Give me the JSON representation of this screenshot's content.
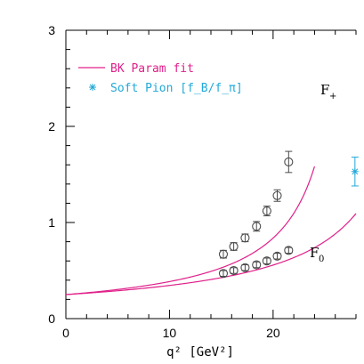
{
  "chart_data": {
    "type": "scatter",
    "title": "",
    "xlabel": "q² [GeV²]",
    "ylabel": "",
    "xlim": [
      0,
      28
    ],
    "ylim": [
      0,
      3
    ],
    "x_ticks": [
      "0",
      "10",
      "20"
    ],
    "y_ticks": [
      "0",
      "1",
      "2",
      "3"
    ],
    "legend": {
      "position": "top-left",
      "entries": [
        {
          "label": "BK Param fit",
          "marker": "line",
          "color": "#e0208a"
        },
        {
          "label": "Soft Pion [f_B/f_π]",
          "marker": "asterisk",
          "color": "#22a9d8"
        }
      ]
    },
    "curve_labels": [
      {
        "text": "F",
        "sub": "+"
      },
      {
        "text": "F",
        "sub": "0"
      }
    ],
    "series": [
      {
        "curve": "F+",
        "x": [
          15.2,
          16.2,
          17.3,
          18.4,
          19.4,
          20.4,
          21.5
        ],
        "y": [
          0.67,
          0.75,
          0.84,
          0.96,
          1.12,
          1.28,
          1.63
        ],
        "yerr": [
          0.04,
          0.04,
          0.04,
          0.05,
          0.05,
          0.06,
          0.11
        ]
      },
      {
        "curve": "F0",
        "x": [
          15.2,
          16.2,
          17.3,
          18.4,
          19.4,
          20.4,
          21.5
        ],
        "y": [
          0.47,
          0.5,
          0.53,
          0.56,
          0.6,
          0.65,
          0.71
        ],
        "yerr": [
          0.03,
          0.03,
          0.03,
          0.03,
          0.03,
          0.03,
          0.03
        ]
      }
    ],
    "fit_curves": [
      {
        "curve": "F+",
        "f0": 0.25,
        "pole": 28.5,
        "x_end": 24.0
      },
      {
        "curve": "F0",
        "f0": 0.25,
        "pole": 36.3,
        "x_end": 28.0
      }
    ],
    "soft_pion": {
      "x": 27.9,
      "y": 1.53,
      "yerr": 0.15
    },
    "colors": {
      "fit": "#e0208a",
      "soft_pion": "#22a9d8",
      "points": "#4a4a4a"
    }
  }
}
